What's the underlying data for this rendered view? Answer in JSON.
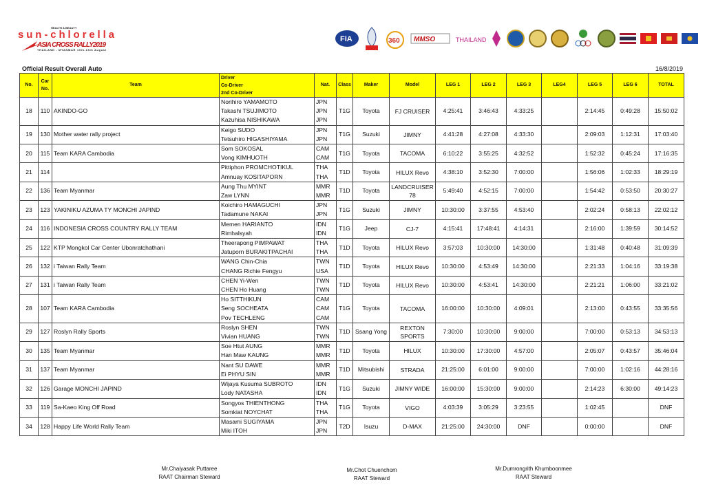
{
  "logos": {
    "left": {
      "tagline": "HEALTH & BEAUTY",
      "brand": "sun-chlorella",
      "event": "ASIA CROSS COUNTRY RALLY 2019",
      "subtitle": "THAILAND-MYANMAR 10th-16th August"
    },
    "right": [
      "fia-logo",
      "sbm-logo",
      "360-logo",
      "mmso-logo",
      "amazing-thailand-logo",
      "tat-logo",
      "seal-logo-1",
      "seal-logo-2",
      "seal-logo-3",
      "olympic-logo",
      "seal-logo-4",
      "thailand-flag",
      "myanmar-flag",
      "cambodia-flag",
      "laos-flag"
    ]
  },
  "header": {
    "title": "Official Result Overall Auto",
    "date": "16/8/2019"
  },
  "columns": {
    "no": "No.",
    "car_no": [
      "Car",
      "No."
    ],
    "team": "Team",
    "driver": [
      "Driver",
      "Co-Driver",
      "2nd Co-Driver"
    ],
    "nat": "Nat.",
    "class": "Class",
    "maker": "Maker",
    "model": "Model",
    "legs": [
      "LEG 1",
      "LEG 2",
      "LEG 3",
      "LEG4",
      "LEG 5",
      "LEG 6"
    ],
    "total": "TOTAL"
  },
  "rows": [
    {
      "no": "18",
      "car": "110",
      "team": "AKINDO-GO",
      "drivers": [
        "Norihiro YAMAMOTO",
        "Takashi TSUJIMOTO",
        "Kazuhisa NISHIKAWA"
      ],
      "nat": [
        "JPN",
        "JPN",
        "JPN"
      ],
      "class": "T1G",
      "maker": "Toyota",
      "model": [
        "FJ CRUISER"
      ],
      "legs": [
        "4:25:41",
        "3:46:43",
        "4:33:25",
        "",
        "2:14:45",
        "0:49:28"
      ],
      "total": "15:50:02"
    },
    {
      "no": "19",
      "car": "130",
      "team": "Mother water rally project",
      "drivers": [
        "Keigo SUDO",
        "Tetsuhiro HIGASHIYAMA"
      ],
      "nat": [
        "JPN",
        "JPN"
      ],
      "class": "T1G",
      "maker": "Suzuki",
      "model": [
        "JIMNY"
      ],
      "legs": [
        "4:41:28",
        "4:27:08",
        "4:33:30",
        "",
        "2:09:03",
        "1:12:31"
      ],
      "total": "17:03:40"
    },
    {
      "no": "20",
      "car": "115",
      "team": "Team KARA Cambodia",
      "drivers": [
        "Som SOKOSAL",
        "Vong KIMHUOTH"
      ],
      "nat": [
        "CAM",
        "CAM"
      ],
      "class": "T1G",
      "maker": "Toyota",
      "model": [
        "TACOMA"
      ],
      "legs": [
        "6:10:22",
        "3:55:25",
        "4:32:52",
        "",
        "1:52:32",
        "0:45:24"
      ],
      "total": "17:16:35"
    },
    {
      "no": "21",
      "car": "114",
      "team": "",
      "drivers": [
        "Pittiphon PROMCHOTIKUL",
        "Amnuay KOSITAPORN"
      ],
      "nat": [
        "THA",
        "THA"
      ],
      "class": "T1D",
      "maker": "Toyota",
      "model": [
        "HILUX Revo"
      ],
      "legs": [
        "4:38:10",
        "3:52:30",
        "7:00:00",
        "",
        "1:56:06",
        "1:02:33"
      ],
      "total": "18:29:19"
    },
    {
      "no": "22",
      "car": "136",
      "team": "Team Myanmar",
      "drivers": [
        "Aung Thu MYINT",
        "Zaw LYNN"
      ],
      "nat": [
        "MMR",
        "MMR"
      ],
      "class": "T1D",
      "maker": "Toyota",
      "model": [
        "LANDCRUISER",
        "78"
      ],
      "legs": [
        "5:49:40",
        "4:52:15",
        "7:00:00",
        "",
        "1:54:42",
        "0:53:50"
      ],
      "total": "20:30:27"
    },
    {
      "no": "23",
      "car": "123",
      "team": "YAKINIKU AZUMA TY MONCHI JAPIND",
      "drivers": [
        "Koichiro HAMAGUCHI",
        "Tadamune NAKAI"
      ],
      "nat": [
        "JPN",
        "JPN"
      ],
      "class": "T1G",
      "maker": "Suzuki",
      "model": [
        "JIMNY"
      ],
      "legs": [
        "10:30:00",
        "3:37:55",
        "4:53:40",
        "",
        "2:02:24",
        "0:58:13"
      ],
      "total": "22:02:12"
    },
    {
      "no": "24",
      "car": "116",
      "team": "INDONESIA CROSS COUNTRY RALLY TEAM",
      "drivers": [
        "Memen HARIANTO",
        "Rimhalsyah"
      ],
      "nat": [
        "IDN",
        "IDN"
      ],
      "class": "T1G",
      "maker": "Jeep",
      "model": [
        "CJ-7"
      ],
      "legs": [
        "4:15:41",
        "17:48:41",
        "4:14:31",
        "",
        "2:16:00",
        "1:39:59"
      ],
      "total": "30:14:52"
    },
    {
      "no": "25",
      "car": "122",
      "team": "KTP Mongkol Car Center Ubonratchathani",
      "drivers": [
        "Theerapong PIMPAWAT",
        "Jatuporn BURAKITPACHAI"
      ],
      "nat": [
        "THA",
        "THA"
      ],
      "class": "T1D",
      "maker": "Toyota",
      "model": [
        "HILUX Revo"
      ],
      "legs": [
        "3:57:03",
        "10:30:00",
        "14:30:00",
        "",
        "1:31:48",
        "0:40:48"
      ],
      "total": "31:09:39"
    },
    {
      "no": "26",
      "car": "132",
      "team": "i Taiwan Rally Team",
      "drivers": [
        "WANG Chin-Chia",
        "CHANG Richie Fengyu"
      ],
      "nat": [
        "TWN",
        "USA"
      ],
      "class": "T1D",
      "maker": "Toyota",
      "model": [
        "HILUX Revo"
      ],
      "legs": [
        "10:30:00",
        "4:53:49",
        "14:30:00",
        "",
        "2:21:33",
        "1:04:16"
      ],
      "total": "33:19:38"
    },
    {
      "no": "27",
      "car": "131",
      "team": "i Taiwan Rally Team",
      "drivers": [
        "CHEN Yi-Wen",
        "CHEN Ho Huang"
      ],
      "nat": [
        "TWN",
        "TWN"
      ],
      "class": "T1D",
      "maker": "Toyota",
      "model": [
        "HILUX Revo"
      ],
      "legs": [
        "10:30:00",
        "4:53:41",
        "14:30:00",
        "",
        "2:21:21",
        "1:06:00"
      ],
      "total": "33:21:02"
    },
    {
      "no": "28",
      "car": "107",
      "team": "Team KARA Cambodia",
      "drivers": [
        "Ho SITTHIKUN",
        "Seng SOCHEATA",
        "Pov TECHLENG"
      ],
      "nat": [
        "CAM",
        "CAM",
        "CAM"
      ],
      "class": "T1G",
      "maker": "Toyota",
      "model": [
        "TACOMA"
      ],
      "legs": [
        "16:00:00",
        "10:30:00",
        "4:09:01",
        "",
        "2:13:00",
        "0:43:55"
      ],
      "total": "33:35:56"
    },
    {
      "no": "29",
      "car": "127",
      "team": "Roslyn Rally Sports",
      "drivers": [
        "Roslyn SHEN",
        "Vivian HUANG"
      ],
      "nat": [
        "TWN",
        "TWN"
      ],
      "class": "T1D",
      "maker": "Ssang Yong",
      "model": [
        "REXTON",
        "SPORTS"
      ],
      "legs": [
        "7:30:00",
        "10:30:00",
        "9:00:00",
        "",
        "7:00:00",
        "0:53:13"
      ],
      "total": "34:53:13"
    },
    {
      "no": "30",
      "car": "135",
      "team": "Team Myanmar",
      "drivers": [
        "Soe Htut AUNG",
        "Han Maw KAUNG"
      ],
      "nat": [
        "MMR",
        "MMR"
      ],
      "class": "T1D",
      "maker": "Toyota",
      "model": [
        "HILUX"
      ],
      "legs": [
        "10:30:00",
        "17:30:00",
        "4:57:00",
        "",
        "2:05:07",
        "0:43:57"
      ],
      "total": "35:46:04"
    },
    {
      "no": "31",
      "car": "137",
      "team": "Team Myanmar",
      "drivers": [
        "Nant SU DAWE",
        "Ei PHYU SIN"
      ],
      "nat": [
        "MMR",
        "MMR"
      ],
      "class": "T1D",
      "maker": "Mitsubishi",
      "model": [
        "STRADA"
      ],
      "legs": [
        "21:25:00",
        "6:01:00",
        "9:00:00",
        "",
        "7:00:00",
        "1:02:16"
      ],
      "total": "44:28:16"
    },
    {
      "no": "32",
      "car": "126",
      "team": "Garage MONCHI JAPIND",
      "drivers": [
        "Wijaya Kusuma SUBROTO",
        "Lody NATASHA"
      ],
      "nat": [
        "IDN",
        "IDN"
      ],
      "class": "T1G",
      "maker": "Suzuki",
      "model": [
        "JIMNY WIDE"
      ],
      "legs": [
        "16:00:00",
        "15:30:00",
        "9:00:00",
        "",
        "2:14:23",
        "6:30:00"
      ],
      "total": "49:14:23"
    },
    {
      "no": "33",
      "car": "119",
      "team": "Sa-Kaeo King Off Road",
      "drivers": [
        "Songyos THIENTHONG",
        "Somkiat NOYCHAT"
      ],
      "nat": [
        "THA",
        "THA"
      ],
      "class": "T1G",
      "maker": "Toyota",
      "model": [
        "VIGO"
      ],
      "legs": [
        "4:03:39",
        "3:05:29",
        "3:23:55",
        "",
        "1:02:45",
        ""
      ],
      "total": "DNF"
    },
    {
      "no": "34",
      "car": "128",
      "team": "Happy Life World Rally Team",
      "drivers": [
        "Masami SUGIYAMA",
        "Miki ITOH"
      ],
      "nat": [
        "JPN",
        "JPN"
      ],
      "class": "T2D",
      "maker": "Isuzu",
      "model": [
        "D-MAX"
      ],
      "legs": [
        "21:25:00",
        "24:30:00",
        "DNF",
        "",
        "0:00:00",
        ""
      ],
      "total": "DNF"
    }
  ],
  "signatures": [
    {
      "name": "Mr.Chaiyasak Puttaree",
      "role": "RAAT Chairman Steward"
    },
    {
      "name": "Mr.Chot Chuenchom",
      "role": "RAAT Steward"
    },
    {
      "name": "Mr.Dumrongrith Khumboonmee",
      "role": "RAAT Steward"
    }
  ]
}
